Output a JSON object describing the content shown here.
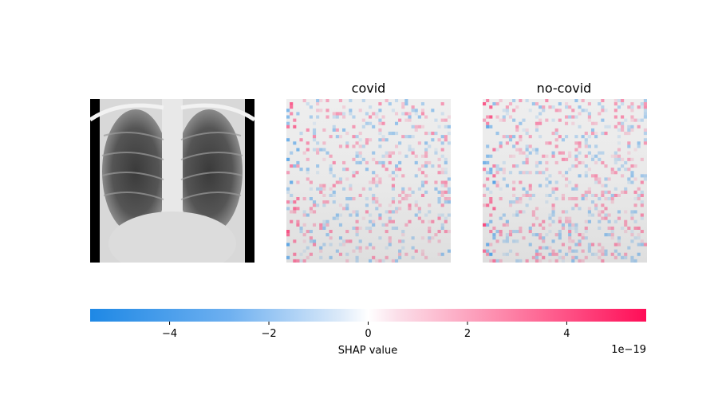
{
  "chart_data": {
    "type": "heatmap",
    "panels": [
      {
        "title": "",
        "kind": "input-image",
        "description_key": "xray"
      },
      {
        "title": "covid",
        "kind": "shap-overlay"
      },
      {
        "title": "no-covid",
        "kind": "shap-overlay"
      }
    ],
    "colorbar": {
      "label": "SHAP value",
      "offset_text": "1e−19",
      "range": [
        -5.6,
        5.6
      ],
      "ticks": [
        -4,
        -2,
        0,
        2,
        4
      ],
      "tick_labels": [
        "−4",
        "−2",
        "0",
        "2",
        "4"
      ],
      "colors": {
        "negative": "#1e88e5",
        "zero": "#ffffff",
        "positive": "#ff0d57"
      }
    }
  }
}
